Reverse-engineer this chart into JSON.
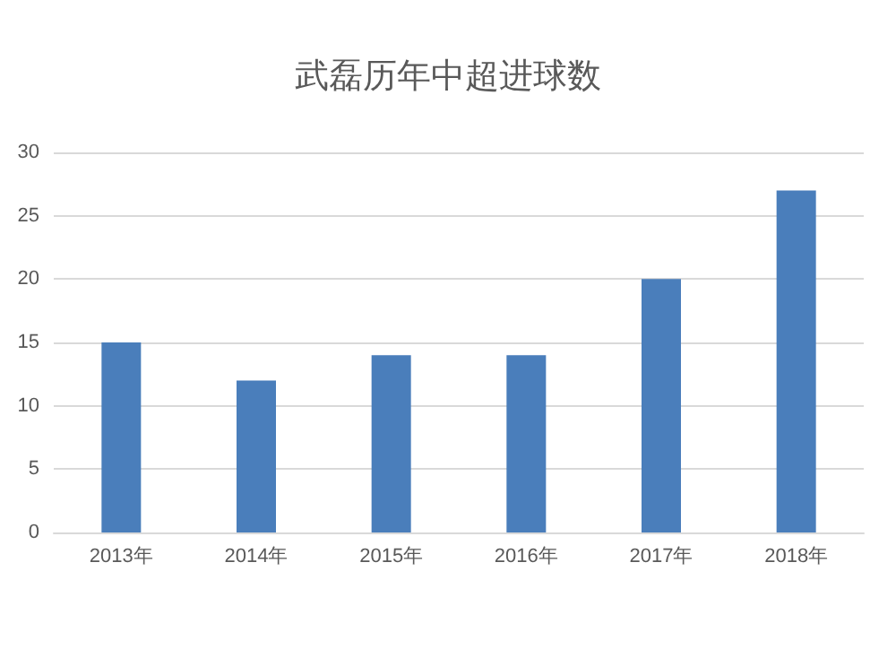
{
  "chart_data": {
    "type": "bar",
    "title": "武磊历年中超进球数",
    "categories": [
      "2013年",
      "2014年",
      "2015年",
      "2016年",
      "2017年",
      "2018年"
    ],
    "values": [
      15,
      12,
      14,
      14,
      20,
      27
    ],
    "color": "#4a7ebb",
    "ylim": [
      0,
      30
    ],
    "yticks": [
      0,
      5,
      10,
      15,
      20,
      25,
      30
    ],
    "grid": "y"
  }
}
